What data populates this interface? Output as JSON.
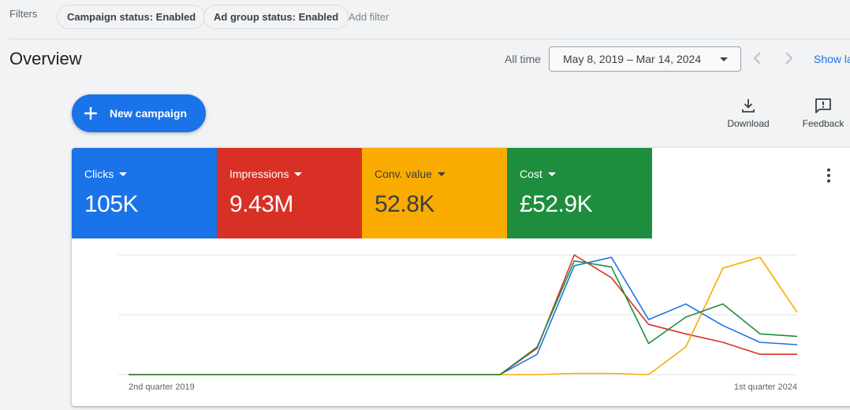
{
  "filters": {
    "label": "Filters",
    "chips": [
      "Campaign status: Enabled",
      "Ad group status: Enabled"
    ],
    "add_filter": "Add filter"
  },
  "overview": {
    "title": "Overview",
    "all_time_label": "All time",
    "date_range": "May 8, 2019 – Mar 14, 2024",
    "show_link": "Show la"
  },
  "actions": {
    "new_campaign": "New campaign",
    "download": "Download",
    "feedback": "Feedback"
  },
  "metrics": [
    {
      "label": "Clicks",
      "value": "105K",
      "color": "#1a73e8"
    },
    {
      "label": "Impressions",
      "value": "9.43M",
      "color": "#d93025"
    },
    {
      "label": "Conv. value",
      "value": "52.8K",
      "color": "#f9ab00"
    },
    {
      "label": "Cost",
      "value": "£52.9K",
      "color": "#1e8e3e"
    }
  ],
  "chart_data": {
    "type": "line",
    "x_tick_labels": [
      "2nd quarter 2019",
      "1st quarter 2024"
    ],
    "ylim": [
      0,
      1
    ],
    "grid": true,
    "note": "normalized values per metric (0 = baseline, 1 = chart top)",
    "series": [
      {
        "name": "Clicks",
        "color": "#1a73e8",
        "values": [
          0,
          0,
          0,
          0,
          0,
          0,
          0,
          0,
          0,
          0,
          0,
          0.17,
          0.91,
          0.98,
          0.46,
          0.59,
          0.41,
          0.27,
          0.25
        ]
      },
      {
        "name": "Impressions",
        "color": "#d93025",
        "values": [
          0,
          0,
          0,
          0,
          0,
          0,
          0,
          0,
          0,
          0,
          0,
          0.22,
          1.0,
          0.81,
          0.42,
          0.34,
          0.27,
          0.17,
          0.17
        ]
      },
      {
        "name": "Conv. value",
        "color": "#f9ab00",
        "values": [
          0,
          0,
          0,
          0,
          0,
          0,
          0,
          0,
          0,
          0,
          0,
          0,
          0.01,
          0.01,
          0.0,
          0.23,
          0.89,
          0.98,
          0.52
        ]
      },
      {
        "name": "Cost",
        "color": "#1e8e3e",
        "values": [
          0,
          0,
          0,
          0,
          0,
          0,
          0,
          0,
          0,
          0,
          0,
          0.23,
          0.95,
          0.9,
          0.26,
          0.48,
          0.59,
          0.34,
          0.32
        ]
      }
    ]
  }
}
